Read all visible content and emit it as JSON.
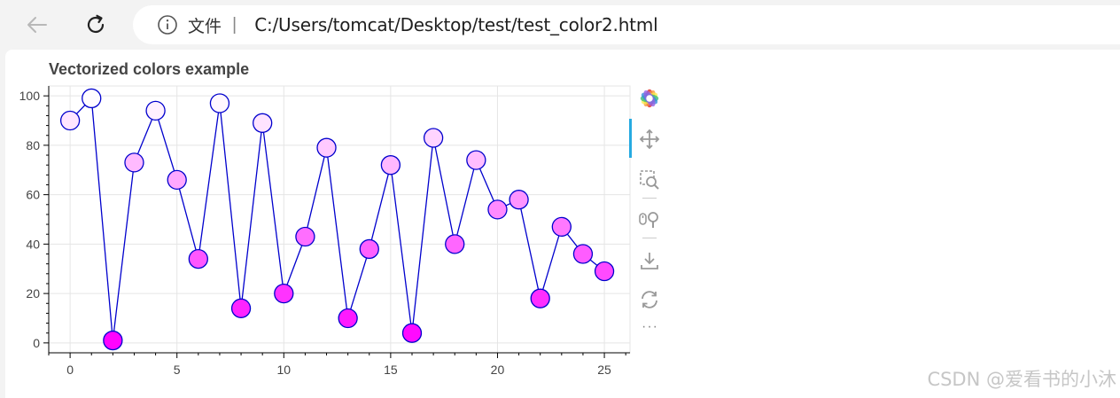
{
  "browser": {
    "file_label": "文件",
    "separator": "|",
    "url": "C:/Users/tomcat/Desktop/test/test_color2.html"
  },
  "chart_data": {
    "type": "scatter",
    "title": "Vectorized colors example",
    "xlabel": "",
    "ylabel": "",
    "xlim": [
      -1,
      26.2
    ],
    "ylim": [
      -4,
      104
    ],
    "x_ticks": [
      0,
      5,
      10,
      15,
      20,
      25
    ],
    "y_ticks": [
      0,
      20,
      40,
      60,
      80,
      100
    ],
    "grid": true,
    "line_color": "#0000cd",
    "marker_edge_color": "#0000cd",
    "marker_fill_scale": "white-to-magenta by value (low = #ff00ff, high = #ffffff)",
    "x": [
      0,
      1,
      2,
      3,
      4,
      5,
      6,
      7,
      8,
      9,
      10,
      11,
      12,
      13,
      14,
      15,
      16,
      17,
      18,
      19,
      20,
      21,
      22,
      23,
      24,
      25
    ],
    "y": [
      90,
      99,
      1,
      73,
      94,
      66,
      34,
      97,
      14,
      89,
      20,
      43,
      79,
      10,
      38,
      72,
      4,
      83,
      40,
      74,
      54,
      58,
      18,
      47,
      36,
      29
    ]
  },
  "toolbar": {
    "tools": [
      "bokeh-logo-icon",
      "pan-icon",
      "box-zoom-icon",
      "wheel-zoom-icon",
      "save-icon",
      "reset-icon",
      "more-icon"
    ],
    "more_label": "···"
  },
  "watermark": "CSDN @爱看书的小沐"
}
